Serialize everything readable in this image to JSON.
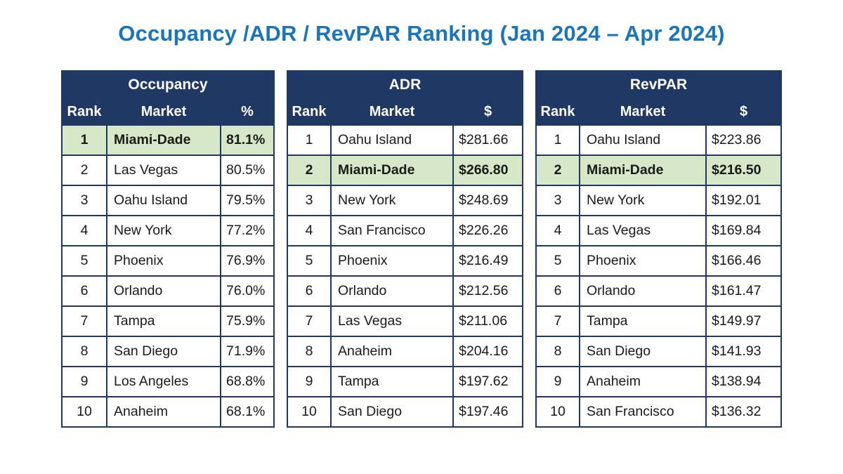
{
  "title": "Occupancy /ADR / RevPAR Ranking (Jan 2024 – Apr 2024)",
  "colors": {
    "title_blue": "#1b75bc",
    "header_navy": "#1f3864",
    "highlight_green": "#d6e8c8",
    "cell_text": "#1a1a1a"
  },
  "chart_data": [
    {
      "type": "table",
      "title": "Occupancy",
      "columns": [
        "Rank",
        "Market",
        "%"
      ],
      "rows": [
        {
          "rank": "1",
          "market": "Miami-Dade",
          "value": "81.1%",
          "highlight": true
        },
        {
          "rank": "2",
          "market": "Las Vegas",
          "value": "80.5%",
          "highlight": false
        },
        {
          "rank": "3",
          "market": "Oahu Island",
          "value": "79.5%",
          "highlight": false
        },
        {
          "rank": "4",
          "market": "New York",
          "value": "77.2%",
          "highlight": false
        },
        {
          "rank": "5",
          "market": "Phoenix",
          "value": "76.9%",
          "highlight": false
        },
        {
          "rank": "6",
          "market": "Orlando",
          "value": "76.0%",
          "highlight": false
        },
        {
          "rank": "7",
          "market": "Tampa",
          "value": "75.9%",
          "highlight": false
        },
        {
          "rank": "8",
          "market": "San Diego",
          "value": "71.9%",
          "highlight": false
        },
        {
          "rank": "9",
          "market": "Los Angeles",
          "value": "68.8%",
          "highlight": false
        },
        {
          "rank": "10",
          "market": "Anaheim",
          "value": "68.1%",
          "highlight": false
        }
      ]
    },
    {
      "type": "table",
      "title": "ADR",
      "columns": [
        "Rank",
        "Market",
        "$"
      ],
      "rows": [
        {
          "rank": "1",
          "market": "Oahu Island",
          "value": "$281.66",
          "highlight": false
        },
        {
          "rank": "2",
          "market": "Miami-Dade",
          "value": "$266.80",
          "highlight": true
        },
        {
          "rank": "3",
          "market": "New York",
          "value": "$248.69",
          "highlight": false
        },
        {
          "rank": "4",
          "market": "San Francisco",
          "value": "$226.26",
          "highlight": false
        },
        {
          "rank": "5",
          "market": "Phoenix",
          "value": "$216.49",
          "highlight": false
        },
        {
          "rank": "6",
          "market": "Orlando",
          "value": "$212.56",
          "highlight": false
        },
        {
          "rank": "7",
          "market": "Las Vegas",
          "value": "$211.06",
          "highlight": false
        },
        {
          "rank": "8",
          "market": "Anaheim",
          "value": "$204.16",
          "highlight": false
        },
        {
          "rank": "9",
          "market": "Tampa",
          "value": "$197.62",
          "highlight": false
        },
        {
          "rank": "10",
          "market": "San Diego",
          "value": "$197.46",
          "highlight": false
        }
      ]
    },
    {
      "type": "table",
      "title": "RevPAR",
      "columns": [
        "Rank",
        "Market",
        "$"
      ],
      "rows": [
        {
          "rank": "1",
          "market": "Oahu Island",
          "value": "$223.86",
          "highlight": false
        },
        {
          "rank": "2",
          "market": "Miami-Dade",
          "value": "$216.50",
          "highlight": true
        },
        {
          "rank": "3",
          "market": "New York",
          "value": "$192.01",
          "highlight": false
        },
        {
          "rank": "4",
          "market": "Las Vegas",
          "value": "$169.84",
          "highlight": false
        },
        {
          "rank": "5",
          "market": "Phoenix",
          "value": "$166.46",
          "highlight": false
        },
        {
          "rank": "6",
          "market": "Orlando",
          "value": "$161.47",
          "highlight": false
        },
        {
          "rank": "7",
          "market": "Tampa",
          "value": "$149.97",
          "highlight": false
        },
        {
          "rank": "8",
          "market": "San Diego",
          "value": "$141.93",
          "highlight": false
        },
        {
          "rank": "9",
          "market": "Anaheim",
          "value": "$138.94",
          "highlight": false
        },
        {
          "rank": "10",
          "market": "San Francisco",
          "value": "$136.32",
          "highlight": false
        }
      ]
    }
  ]
}
